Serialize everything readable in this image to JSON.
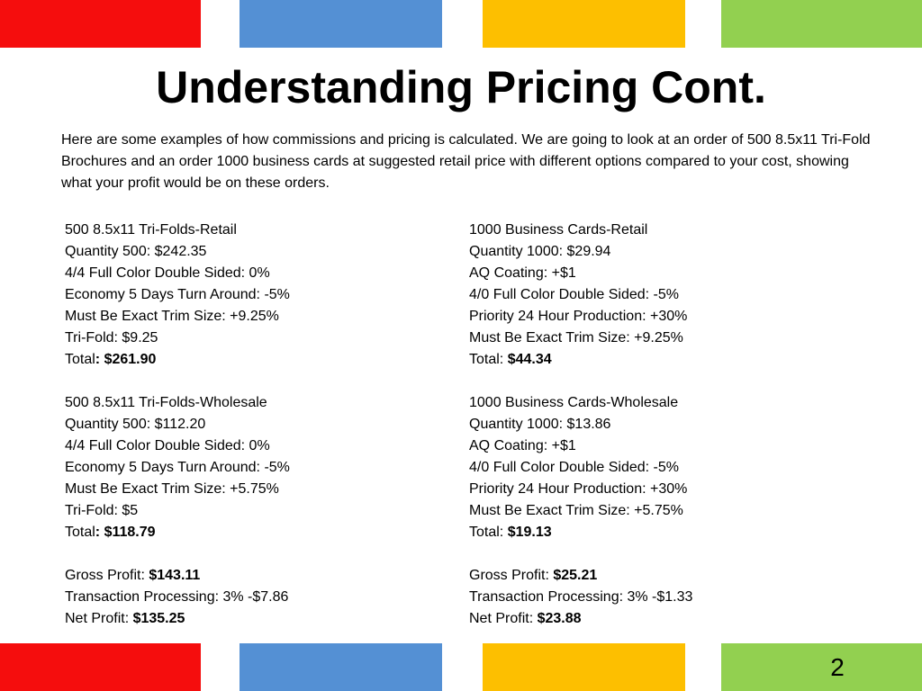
{
  "colors": {
    "red": "#f50d0d",
    "blue": "#5490d4",
    "yellow": "#fdbf00",
    "green": "#92d050"
  },
  "title": "Understanding Pricing Cont.",
  "intro": "Here are some examples of how commissions and pricing is calculated. We are going to look at an order of 500 8.5x11 Tri-Fold Brochures and an order 1000 business cards at suggested retail price with different options compared to your cost, showing what your profit would be on these orders.",
  "left": {
    "retail": {
      "heading": "500 8.5x11 Tri-Folds-Retail",
      "lines": [
        "Quantity 500: $242.35",
        "4/4 Full Color Double Sided: 0%",
        "Economy 5 Days Turn Around: -5%",
        "Must Be Exact Trim Size: +9.25%",
        "Tri-Fold: $9.25"
      ],
      "total_label": "Total",
      "total_value": ":  $261.90"
    },
    "wholesale": {
      "heading": "500 8.5x11 Tri-Folds-Wholesale",
      "lines": [
        "Quantity 500: $112.20",
        "4/4 Full Color Double Sided: 0%",
        "Economy 5 Days Turn Around: -5%",
        "Must Be Exact Trim Size: +5.75%",
        "Tri-Fold: $5"
      ],
      "total_label": "Total",
      "total_value": ":  $118.79"
    },
    "gross_label": "Gross Profit: ",
    "gross_value": "$143.11",
    "transaction": "Transaction Processing: 3% -$7.86",
    "net_label": "Net Profit: ",
    "net_value": "$135.25"
  },
  "right": {
    "retail": {
      "heading": "1000 Business Cards-Retail",
      "lines": [
        "Quantity 1000: $29.94",
        "AQ Coating: +$1",
        "4/0 Full Color Double Sided: -5%",
        "Priority 24 Hour Production: +30%",
        "Must Be Exact Trim Size: +9.25%"
      ],
      "total_label": "Total:  ",
      "total_value": "$44.34"
    },
    "wholesale": {
      "heading": "1000 Business Cards-Wholesale",
      "lines": [
        "Quantity 1000: $13.86",
        "AQ Coating: +$1",
        "4/0 Full Color Double Sided: -5%",
        "Priority 24 Hour Production: +30%",
        "Must Be Exact Trim Size: +5.75%"
      ],
      "total_label": "Total:  ",
      "total_value": "$19.13"
    },
    "gross_label": "Gross Profit: ",
    "gross_value": "$25.21",
    "transaction": "Transaction Processing: 3% -$1.33",
    "net_label": "Net Profit: ",
    "net_value": "$23.88"
  },
  "page_number": "2"
}
